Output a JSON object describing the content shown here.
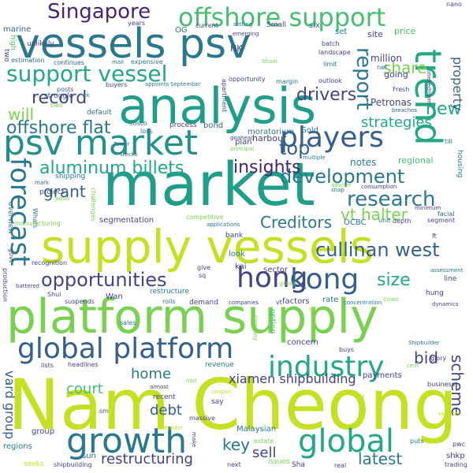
{
  "word_cloud": {
    "palette": {
      "yellow_green": "#c4e021",
      "light_green": "#7ad151",
      "green": "#44bf70",
      "teal_green": "#22a884",
      "teal": "#21918c",
      "steel_blue": "#2a788e",
      "slate_blue": "#355f8d",
      "indigo": "#414487",
      "purple": "#482475",
      "dark_purple": "#440154"
    },
    "words": [
      {
        "text": "Nam Cheong",
        "color": "#c4e021"
      },
      {
        "text": "platform supply",
        "color": "#7ad151"
      },
      {
        "text": "supply vessels",
        "color": "#c4e021"
      },
      {
        "text": "market",
        "color": "#1f9e89"
      },
      {
        "text": "analysis",
        "color": "#1f9e89"
      },
      {
        "text": "vessels psv",
        "color": "#2a788e"
      },
      {
        "text": "psv market",
        "color": "#21918c"
      },
      {
        "text": "offshore support",
        "color": "#44bf70"
      },
      {
        "text": "Singapore",
        "color": "#482475"
      },
      {
        "text": "support vessel",
        "color": "#22a884"
      },
      {
        "text": "trend",
        "color": "#22a884"
      },
      {
        "text": "global platform",
        "color": "#355f8d"
      },
      {
        "text": "growth",
        "color": "#2a788e"
      },
      {
        "text": "hong",
        "color": "#414487"
      },
      {
        "text": "kong",
        "color": "#355f8d"
      },
      {
        "text": "industry",
        "color": "#22a884"
      },
      {
        "text": "global",
        "color": "#22a884"
      },
      {
        "text": "players",
        "color": "#355f8d"
      },
      {
        "text": "forecast",
        "color": "#2a788e"
      },
      {
        "text": "opportunities",
        "color": "#414487"
      },
      {
        "text": "aluminum billets",
        "color": "#22a884"
      },
      {
        "text": "development",
        "color": "#2a788e"
      },
      {
        "text": "research",
        "color": "#2a788e"
      },
      {
        "text": "cullinan west",
        "color": "#355f8d"
      },
      {
        "text": "offshore flat",
        "color": "#2a788e"
      },
      {
        "text": "record",
        "color": "#414487"
      },
      {
        "text": "report",
        "color": "#2a788e"
      },
      {
        "text": "new",
        "color": "#22a884"
      },
      {
        "text": "share",
        "color": "#7ad151"
      },
      {
        "text": "drivers",
        "color": "#414487"
      },
      {
        "text": "top",
        "color": "#355f8d"
      },
      {
        "text": "insights",
        "color": "#482475"
      },
      {
        "text": "strategies",
        "color": "#22a884"
      },
      {
        "text": "will",
        "color": "#7ad151"
      },
      {
        "text": "vt halter",
        "color": "#7ad151"
      },
      {
        "text": "grant",
        "color": "#355f8d"
      },
      {
        "text": "Creditors",
        "color": "#2a788e"
      },
      {
        "text": "size",
        "color": "#22a884"
      },
      {
        "text": "bid",
        "color": "#414487"
      },
      {
        "text": "scheme",
        "color": "#414487"
      },
      {
        "text": "restructuring",
        "color": "#414487"
      },
      {
        "text": "key",
        "color": "#2a788e"
      },
      {
        "text": "latest",
        "color": "#2a788e"
      },
      {
        "text": "sell",
        "color": "#414487"
      },
      {
        "text": "debt",
        "color": "#355f8d"
      },
      {
        "text": "home",
        "color": "#2a788e"
      },
      {
        "text": "court",
        "color": "#44bf70"
      },
      {
        "text": "xiamen shipbuilding",
        "color": "#414487"
      },
      {
        "text": "vard group",
        "color": "#355f8d"
      },
      {
        "text": "property",
        "color": "#355f8d"
      },
      {
        "text": "million",
        "color": "#414487"
      },
      {
        "text": "Petronas",
        "color": "#414487"
      },
      {
        "text": "notes",
        "color": "#2a788e"
      },
      {
        "text": "regional",
        "color": "#44bf70"
      },
      {
        "text": "price",
        "color": "#44bf70"
      },
      {
        "text": "site",
        "color": "#414487"
      },
      {
        "text": "set",
        "color": "#2a788e"
      },
      {
        "text": "going",
        "color": "#414487"
      },
      {
        "text": "HK",
        "color": "#414487"
      },
      {
        "text": "OG",
        "color": "#2a788e"
      },
      {
        "text": "six",
        "color": "#355f8d"
      },
      {
        "text": "Small",
        "color": "#414487"
      },
      {
        "text": "current",
        "color": "#414487"
      },
      {
        "text": "harbour",
        "color": "#414487"
      },
      {
        "text": "plan",
        "color": "#414487"
      },
      {
        "text": "moratorium",
        "color": "#2a788e"
      },
      {
        "text": "Gold",
        "color": "#2a788e"
      },
      {
        "text": "loss",
        "color": "#2a788e"
      },
      {
        "text": "bond",
        "color": "#355f8d"
      },
      {
        "text": "process",
        "color": "#414487"
      },
      {
        "text": "cosco",
        "color": "#2a788e"
      },
      {
        "text": "default",
        "color": "#2a788e"
      },
      {
        "text": "expensive",
        "color": "#2a788e"
      },
      {
        "text": "unlikely",
        "color": "#414487"
      },
      {
        "text": "marine",
        "color": "#355f8d"
      },
      {
        "text": "high",
        "color": "#44bf70"
      },
      {
        "text": "two",
        "color": "#414487"
      },
      {
        "text": "estimation",
        "color": "#2a788e"
      },
      {
        "text": "continues",
        "color": "#355f8d"
      },
      {
        "text": "mall",
        "color": "#2a788e"
      },
      {
        "text": "years",
        "color": "#414487"
      },
      {
        "text": "nano",
        "color": "#414487"
      },
      {
        "text": "emerging",
        "color": "#414487"
      },
      {
        "text": "setting",
        "color": "#2a788e"
      },
      {
        "text": "batch",
        "color": "#414487"
      },
      {
        "text": "landscape",
        "color": "#414487"
      },
      {
        "text": "limit",
        "color": "#2a788e"
      },
      {
        "text": "net",
        "color": "#2a788e"
      },
      {
        "text": "outlook",
        "color": "#414487"
      },
      {
        "text": "Fresh",
        "color": "#414487"
      },
      {
        "text": "breaches",
        "color": "#355f8d"
      },
      {
        "text": "onebedroom",
        "color": "#414487"
      },
      {
        "text": "margin",
        "color": "#2a788e"
      },
      {
        "text": "opportunity",
        "color": "#414487"
      },
      {
        "text": "Sham",
        "color": "#7ad151"
      },
      {
        "text": "apartment",
        "color": "#414487"
      },
      {
        "text": "buyers",
        "color": "#414487"
      },
      {
        "text": "appoints",
        "color": "#2a788e"
      },
      {
        "text": "September",
        "color": "#2a788e"
      },
      {
        "text": "posts",
        "color": "#355f8d"
      },
      {
        "text": "struggle",
        "color": "#355f8d"
      },
      {
        "text": "bad",
        "color": "#7ad151"
      },
      {
        "text": "ck",
        "color": "#2a788e"
      },
      {
        "text": "Tower",
        "color": "#2a788e"
      },
      {
        "text": "stocks",
        "color": "#2a788e"
      },
      {
        "text": "shipping",
        "color": "#2a788e"
      },
      {
        "text": "goahead",
        "color": "#414487"
      },
      {
        "text": "principal",
        "color": "#7ad151"
      },
      {
        "text": "multiple",
        "color": "#2a788e"
      },
      {
        "text": "adviser",
        "color": "#7ad151"
      },
      {
        "text": "consumption",
        "color": "#414487"
      },
      {
        "text": "snap",
        "color": "#2a788e"
      },
      {
        "text": "facial",
        "color": "#355f8d"
      },
      {
        "text": "minimum",
        "color": "#414487"
      },
      {
        "text": "segment",
        "color": "#414487"
      },
      {
        "text": "ft",
        "color": "#414487"
      },
      {
        "text": "housing",
        "color": "#2a788e"
      },
      {
        "text": "till",
        "color": "#2a788e"
      },
      {
        "text": "mark",
        "color": "#355f8d"
      },
      {
        "text": "project",
        "color": "#414487"
      },
      {
        "text": "posts",
        "color": "#7ad151"
      },
      {
        "text": "challenges",
        "color": "#7ad151"
      },
      {
        "text": "Whats",
        "color": "#2a788e"
      },
      {
        "text": "segmentation",
        "color": "#414487"
      },
      {
        "text": "competitive",
        "color": "#7ad151"
      },
      {
        "text": "applications",
        "color": "#2a788e"
      },
      {
        "text": "unit",
        "color": "#2a788e"
      },
      {
        "text": "depth",
        "color": "#414487"
      },
      {
        "text": "OCBC",
        "color": "#2a788e"
      },
      {
        "text": "manufacturing",
        "color": "#7ad151"
      },
      {
        "text": "overview",
        "color": "#2a788e"
      },
      {
        "text": "bank",
        "color": "#414487"
      },
      {
        "text": "govt",
        "color": "#414487"
      },
      {
        "text": "look",
        "color": "#2a788e"
      },
      {
        "text": "kai",
        "color": "#414487"
      },
      {
        "text": "sector",
        "color": "#414487"
      },
      {
        "text": "recognition",
        "color": "#414487"
      },
      {
        "text": "give",
        "color": "#414487"
      },
      {
        "text": "sq",
        "color": "#414487"
      },
      {
        "text": "gross",
        "color": "#7ad151"
      },
      {
        "text": "assessment",
        "color": "#2a788e"
      },
      {
        "text": "line",
        "color": "#414487"
      },
      {
        "text": "production",
        "color": "#414487"
      },
      {
        "text": "battered",
        "color": "#414487"
      },
      {
        "text": "Shui",
        "color": "#414487"
      },
      {
        "text": "suspends",
        "color": "#414487"
      },
      {
        "text": "Wan",
        "color": "#414487"
      },
      {
        "text": "restructure",
        "color": "#2a788e"
      },
      {
        "text": "rolls",
        "color": "#2a788e"
      },
      {
        "text": "demand",
        "color": "#414487"
      },
      {
        "text": "companies",
        "color": "#414487"
      },
      {
        "text": "factors",
        "color": "#414487"
      },
      {
        "text": "rate",
        "color": "#2a788e"
      },
      {
        "text": "concentration",
        "color": "#2a788e"
      },
      {
        "text": "hung",
        "color": "#414487"
      },
      {
        "text": "Coast",
        "color": "#7ad151"
      },
      {
        "text": "dynamics",
        "color": "#414487"
      },
      {
        "text": "Po",
        "color": "#c4e021"
      },
      {
        "text": "vt",
        "color": "#414487"
      },
      {
        "text": "sales",
        "color": "#2a788e"
      },
      {
        "text": "option",
        "color": "#44bf70"
      },
      {
        "text": "company",
        "color": "#7ad151"
      },
      {
        "text": "concern",
        "color": "#414487"
      },
      {
        "text": "buys",
        "color": "#414487"
      },
      {
        "text": "Shipbuilder",
        "color": "#2a788e"
      },
      {
        "text": "cent",
        "color": "#7ad151"
      },
      {
        "text": "glory",
        "color": "#414487"
      },
      {
        "text": "lists",
        "color": "#414487"
      },
      {
        "text": "headlines",
        "color": "#414487"
      },
      {
        "text": "revenue",
        "color": "#2a788e"
      },
      {
        "text": "payments",
        "color": "#414487"
      },
      {
        "text": "business",
        "color": "#414487"
      },
      {
        "text": "almost",
        "color": "#414487"
      },
      {
        "text": "nod",
        "color": "#7ad151"
      },
      {
        "text": "coupon",
        "color": "#c4e021"
      },
      {
        "text": "recent",
        "color": "#414487"
      },
      {
        "text": "say",
        "color": "#414487"
      },
      {
        "text": "sm",
        "color": "#414487"
      },
      {
        "text": "consider",
        "color": "#c4e021"
      },
      {
        "text": "massive",
        "color": "#414487"
      },
      {
        "text": "Malaysian",
        "color": "#2a788e"
      },
      {
        "text": "means",
        "color": "#c4e021"
      },
      {
        "text": "sweeten",
        "color": "#c4e021"
      },
      {
        "text": "group",
        "color": "#414487"
      },
      {
        "text": "regions",
        "color": "#2a788e"
      },
      {
        "text": "sun",
        "color": "#2a788e"
      },
      {
        "text": "make",
        "color": "#414487"
      },
      {
        "text": "estate",
        "color": "#7ad151"
      },
      {
        "text": "puts",
        "color": "#2a788e"
      },
      {
        "text": "pwc",
        "color": "#414487"
      },
      {
        "text": "shkp",
        "color": "#414487"
      },
      {
        "text": "trading",
        "color": "#414487"
      },
      {
        "text": "seeks",
        "color": "#c4e021"
      },
      {
        "text": "shipbuilding",
        "color": "#414487"
      },
      {
        "text": "next",
        "color": "#414487"
      },
      {
        "text": "issues",
        "color": "#7ad151"
      },
      {
        "text": "Sha",
        "color": "#414487"
      },
      {
        "text": "real",
        "color": "#414487"
      }
    ]
  }
}
